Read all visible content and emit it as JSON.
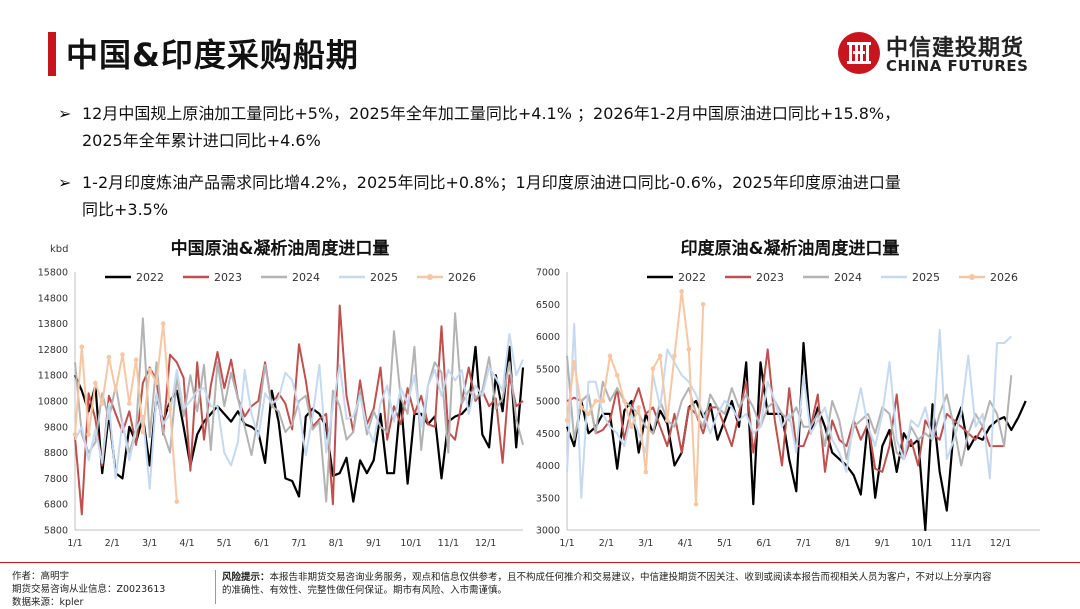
{
  "title": "中国&印度采购船期",
  "logo": {
    "cn": "中信建投期货",
    "en": "CHINA FUTURES"
  },
  "bullets": [
    {
      "arrow": "➢",
      "line1": "12月中国规上原油加工量同比+5%，2025年全年加工量同比+4.1% ；2026年1-2月中国原油进口同比+15.8%，",
      "line2": "2025年全年累计进口同比+4.6%"
    },
    {
      "arrow": "➢",
      "line1": "1-2月印度炼油产品需求同比增4.2%，2025年同比+0.8%；1月印度原油进口同比-0.6%，2025年印度原油进口量",
      "line2": "同比+3.5%"
    }
  ],
  "footer": {
    "author": "作者：高明宇",
    "license": "期货交易咨询从业信息：Z0023613",
    "source": "数据来源：kpler",
    "risk_label": "风险提示：",
    "risk_text1": "本报告非期货交易咨询业务服务，观点和信息仅供参考，且不构成任何推介和交易建议，中信建投期货不因关注、收到或阅读本报告而视相关人员为客户，不对以上分享内容",
    "risk_text2": "的准确性、有效性、完整性做任何保证。期市有风险、入市需谨慎。"
  },
  "colors": {
    "accent": "#c8151d",
    "s2022": "#000000",
    "s2023": "#c0504d",
    "s2024": "#b3b3b3",
    "s2025": "#c5d9f1",
    "s2026": "#f7c6a3"
  },
  "chart_data": [
    {
      "type": "line",
      "title": "中国原油&凝析油周度进口量",
      "ylabel": "kbd",
      "ylim": [
        5800,
        15800
      ],
      "yticks": [
        5800,
        6800,
        7800,
        8800,
        9800,
        10800,
        11800,
        12800,
        13800,
        14800,
        15800
      ],
      "xticks": [
        "1/1",
        "2/1",
        "3/1",
        "4/1",
        "5/1",
        "6/1",
        "7/1",
        "8/1",
        "9/1",
        "10/1",
        "11/1",
        "12/1"
      ],
      "legend_position": "top",
      "series": [
        {
          "name": "2022",
          "values": [
            11800,
            11200,
            10400,
            11400,
            8000,
            10300,
            8000,
            7800,
            9800,
            9200,
            10200,
            8300,
            11000,
            10000,
            10800,
            11200,
            9800,
            8300,
            9500,
            10000,
            10300,
            10600,
            10300,
            10000,
            10400,
            9900,
            9800,
            9600,
            8400,
            11200,
            10000,
            7800,
            7700,
            7100,
            10200,
            10500,
            10300,
            9800,
            7900,
            8000,
            8600,
            6900,
            8500,
            8000,
            8500,
            10300,
            8000,
            8000,
            10900,
            7600,
            10300,
            10300,
            9900,
            10200,
            7800,
            10000,
            10200,
            10300,
            10600,
            12900,
            9500,
            9000,
            11800,
            10400,
            12900,
            9000,
            12100
          ]
        },
        {
          "name": "2023",
          "values": [
            9400,
            6400,
            11100,
            10100,
            8300,
            11000,
            10300,
            9600,
            10400,
            9100,
            11500,
            12100,
            11600,
            9500,
            12600,
            12300,
            11700,
            8100,
            12300,
            9300,
            11400,
            12700,
            11300,
            12400,
            10900,
            10200,
            10600,
            10800,
            12300,
            10600,
            11100,
            10700,
            9700,
            13000,
            11600,
            9800,
            10100,
            10300,
            6800,
            14500,
            11000,
            9600,
            11600,
            9900,
            10500,
            12100,
            9300,
            10600,
            9900,
            11300,
            10300,
            11000,
            9900,
            9800,
            13700,
            9600,
            9300,
            10800,
            12100,
            10800,
            11200,
            10600,
            10900,
            8400,
            11800,
            10600,
            10800
          ]
        },
        {
          "name": "2024",
          "values": [
            12300,
            9500,
            8800,
            9200,
            11100,
            10100,
            11400,
            9900,
            8800,
            9700,
            14000,
            9400,
            12300,
            9600,
            8800,
            11700,
            10200,
            11800,
            10400,
            12200,
            8900,
            12300,
            10600,
            11900,
            10900,
            9800,
            8700,
            10200,
            12200,
            10600,
            10400,
            9600,
            9900,
            10800,
            11000,
            9700,
            10000,
            6900,
            11200,
            10600,
            9300,
            9600,
            11200,
            9500,
            10400,
            9800,
            9600,
            13500,
            10900,
            10300,
            12900,
            8900,
            11400,
            12300,
            11900,
            8800,
            14200,
            10700,
            11200,
            10900,
            11200,
            12500,
            10500,
            10900,
            12300,
            10100,
            9100
          ]
        },
        {
          "name": "2025",
          "values": [
            9300,
            9800,
            8500,
            9700,
            8400,
            10700,
            7800,
            10000,
            8500,
            9700,
            10200,
            7400,
            11100,
            9900,
            10300,
            12000,
            10500,
            10800,
            11200,
            11300,
            10600,
            10600,
            8800,
            8300,
            9200,
            12000,
            10300,
            9400,
            11100,
            10700,
            10900,
            11900,
            11600,
            10500,
            8700,
            10200,
            12200,
            8800,
            10600,
            12200,
            10100,
            10200,
            11000,
            9800,
            9200,
            10700,
            11400,
            10000,
            11300,
            10700,
            11800,
            9800,
            11400,
            12000,
            11000,
            12000,
            11600,
            12000,
            10300,
            11400,
            11000,
            12100,
            11700,
            11200,
            13400,
            11800,
            12400
          ]
        },
        {
          "name": "2026",
          "values": [
            9500,
            12900,
            9500,
            11500,
            10700,
            12500,
            11200,
            12600,
            10700,
            12400,
            9600,
            12000,
            11500,
            13800,
            10500,
            6900
          ]
        }
      ]
    },
    {
      "type": "line",
      "title": "印度原油&凝析油周度进口量",
      "ylabel": "",
      "ylim": [
        3000,
        7000
      ],
      "yticks": [
        3000,
        3500,
        4000,
        4500,
        5000,
        5500,
        6000,
        6500,
        7000
      ],
      "xticks": [
        "1/1",
        "2/1",
        "3/1",
        "4/1",
        "5/1",
        "6/1",
        "7/1",
        "8/1",
        "9/1",
        "10/1",
        "11/1",
        "12/1"
      ],
      "legend_position": "top",
      "series": [
        {
          "name": "2022",
          "values": [
            4600,
            4300,
            5000,
            4500,
            4600,
            4800,
            4800,
            3950,
            4850,
            5000,
            4200,
            4800,
            4500,
            4850,
            4650,
            4000,
            4200,
            4900,
            5000,
            4750,
            4950,
            4400,
            4700,
            5000,
            4600,
            5600,
            3400,
            5600,
            4800,
            4800,
            4800,
            4100,
            3600,
            5900,
            4500,
            4900,
            4600,
            4200,
            4100,
            4000,
            3850,
            3550,
            4700,
            3500,
            4300,
            4550,
            3900,
            4500,
            4300,
            4400,
            3000,
            4950,
            3900,
            3300,
            4600,
            4900,
            4250,
            4450,
            4400,
            4600,
            4700,
            4750,
            4550,
            4750,
            5000
          ]
        },
        {
          "name": "2023",
          "values": [
            5000,
            5050,
            5000,
            5100,
            4500,
            4550,
            4700,
            5200,
            4400,
            4900,
            5200,
            4800,
            4900,
            4600,
            4300,
            4800,
            4200,
            4900,
            4800,
            4500,
            4900,
            4900,
            4600,
            4300,
            4800,
            5300,
            4200,
            4900,
            5800,
            4700,
            4000,
            5200,
            4300,
            4300,
            4600,
            5100,
            3900,
            4700,
            4400,
            4300,
            4700,
            4400,
            4650,
            3950,
            3900,
            4300,
            5100,
            4100,
            4400,
            4000,
            4700,
            4500,
            4400,
            4800,
            4700,
            4600,
            4500,
            4400,
            4600,
            4300,
            4300,
            4300
          ]
        },
        {
          "name": "2024",
          "values": [
            5700,
            4400,
            5000,
            5100,
            4500,
            5300,
            5000,
            5200,
            5000,
            4900,
            4800,
            4600,
            4500,
            5000,
            4700,
            4600,
            5000,
            5200,
            4800,
            4600,
            5100,
            4900,
            4800,
            5200,
            4900,
            5100,
            4900,
            4600,
            4900,
            5000,
            4800,
            4700,
            4900,
            4600,
            4600,
            4800,
            4300,
            5000,
            4700,
            4100,
            4600,
            4700,
            4800,
            4500,
            4900,
            4800,
            4200,
            4100,
            4600,
            4400,
            4500,
            4400,
            4800,
            5100,
            4600,
            4000,
            4500,
            4800,
            4600,
            5000,
            4800,
            4300,
            5400
          ]
        },
        {
          "name": "2025",
          "values": [
            3900,
            6200,
            3500,
            5300,
            5300,
            4800,
            4600,
            4500,
            4300,
            4800,
            4500,
            4200,
            5400,
            4900,
            5800,
            5600,
            5400,
            5300,
            5100,
            4800,
            4500,
            4800,
            5000,
            4900,
            4700,
            4800,
            4500,
            4600,
            5300,
            5000,
            4600,
            4800,
            4200,
            5400,
            4500,
            4700,
            4900,
            4400,
            4200,
            3900,
            4700,
            5200,
            4600,
            4300,
            4800,
            5600,
            4400,
            4100,
            4700,
            4600,
            4900,
            4400,
            6100,
            4100,
            4400,
            4800,
            5700,
            4600,
            4800,
            3800,
            5900,
            5900,
            6000
          ]
        },
        {
          "name": "2026",
          "values": [
            4700,
            5600,
            4900,
            4800,
            5000,
            5000,
            5700,
            5400,
            5000,
            4600,
            4900,
            3900,
            5500,
            5700,
            4700,
            5700,
            6700,
            5800,
            3400,
            6500
          ]
        }
      ]
    }
  ]
}
